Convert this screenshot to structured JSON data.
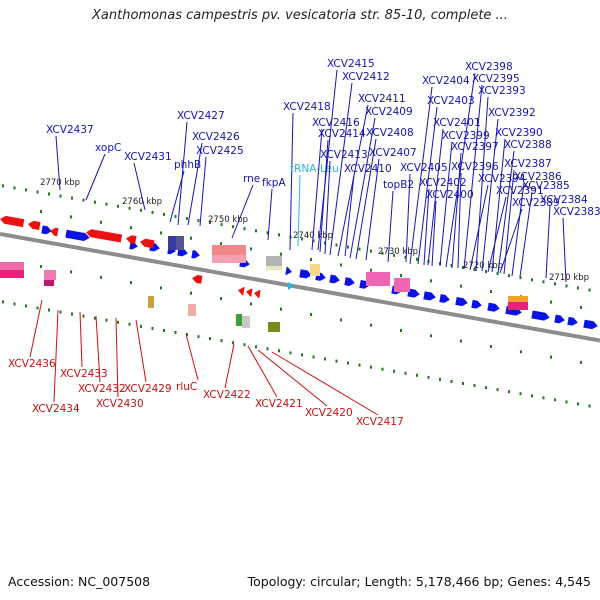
{
  "title": "Xanthomonas campestris pv. vesicatoria str. 85-10, complete ...",
  "footer": {
    "accession": "Accession: NC_007508",
    "stats": "Topology: circular; Length: 5,178,466 bp; Genes: 4,545"
  },
  "colors": {
    "forward_gene": "#0a12e6",
    "reverse_gene": "#ef1010",
    "forward_label": "#1515b0",
    "reverse_label": "#cc1111",
    "trna_label": "#29b6e0",
    "backbone": "#8c8c8c",
    "tick_marks": "#1f7a1f"
  },
  "scale_ticks": [
    "2770 kbp",
    "2760 kbp",
    "2750 kbp",
    "2740 kbp",
    "2730 kbp",
    "2720 kbp",
    "2710 kbp"
  ],
  "forward_labels": [
    "XCV2437",
    "xopC",
    "XCV2431",
    "phhB",
    "XCV2427",
    "XCV2426",
    "XCV2425",
    "rne",
    "fkpA",
    "XCV2418",
    "tRNA-Leu",
    "XCV2416",
    "XCV2415",
    "XCV2414",
    "XCV2413",
    "XCV2412",
    "XCV2411",
    "XCV2410",
    "XCV2409",
    "XCV2408",
    "XCV2407",
    "topB2",
    "XCV2405",
    "XCV2404",
    "XCV2403",
    "XCV2402",
    "XCV2401",
    "XCV2400",
    "XCV2399",
    "XCV2398",
    "XCV2397",
    "XCV2396",
    "XCV2395",
    "XCV2394",
    "XCV2393",
    "XCV2392",
    "XCV2391",
    "XCV2390",
    "XCV2389",
    "XCV2388",
    "XCV2387",
    "XCV2386",
    "XCV2385",
    "XCV2384",
    "XCV2383"
  ],
  "reverse_labels": [
    "XCV2436",
    "XCV2434",
    "XCV2433",
    "XCV2432",
    "XCV2430",
    "XCV2429",
    "rluC",
    "XCV2422",
    "XCV2421",
    "XCV2420",
    "XCV2417"
  ]
}
